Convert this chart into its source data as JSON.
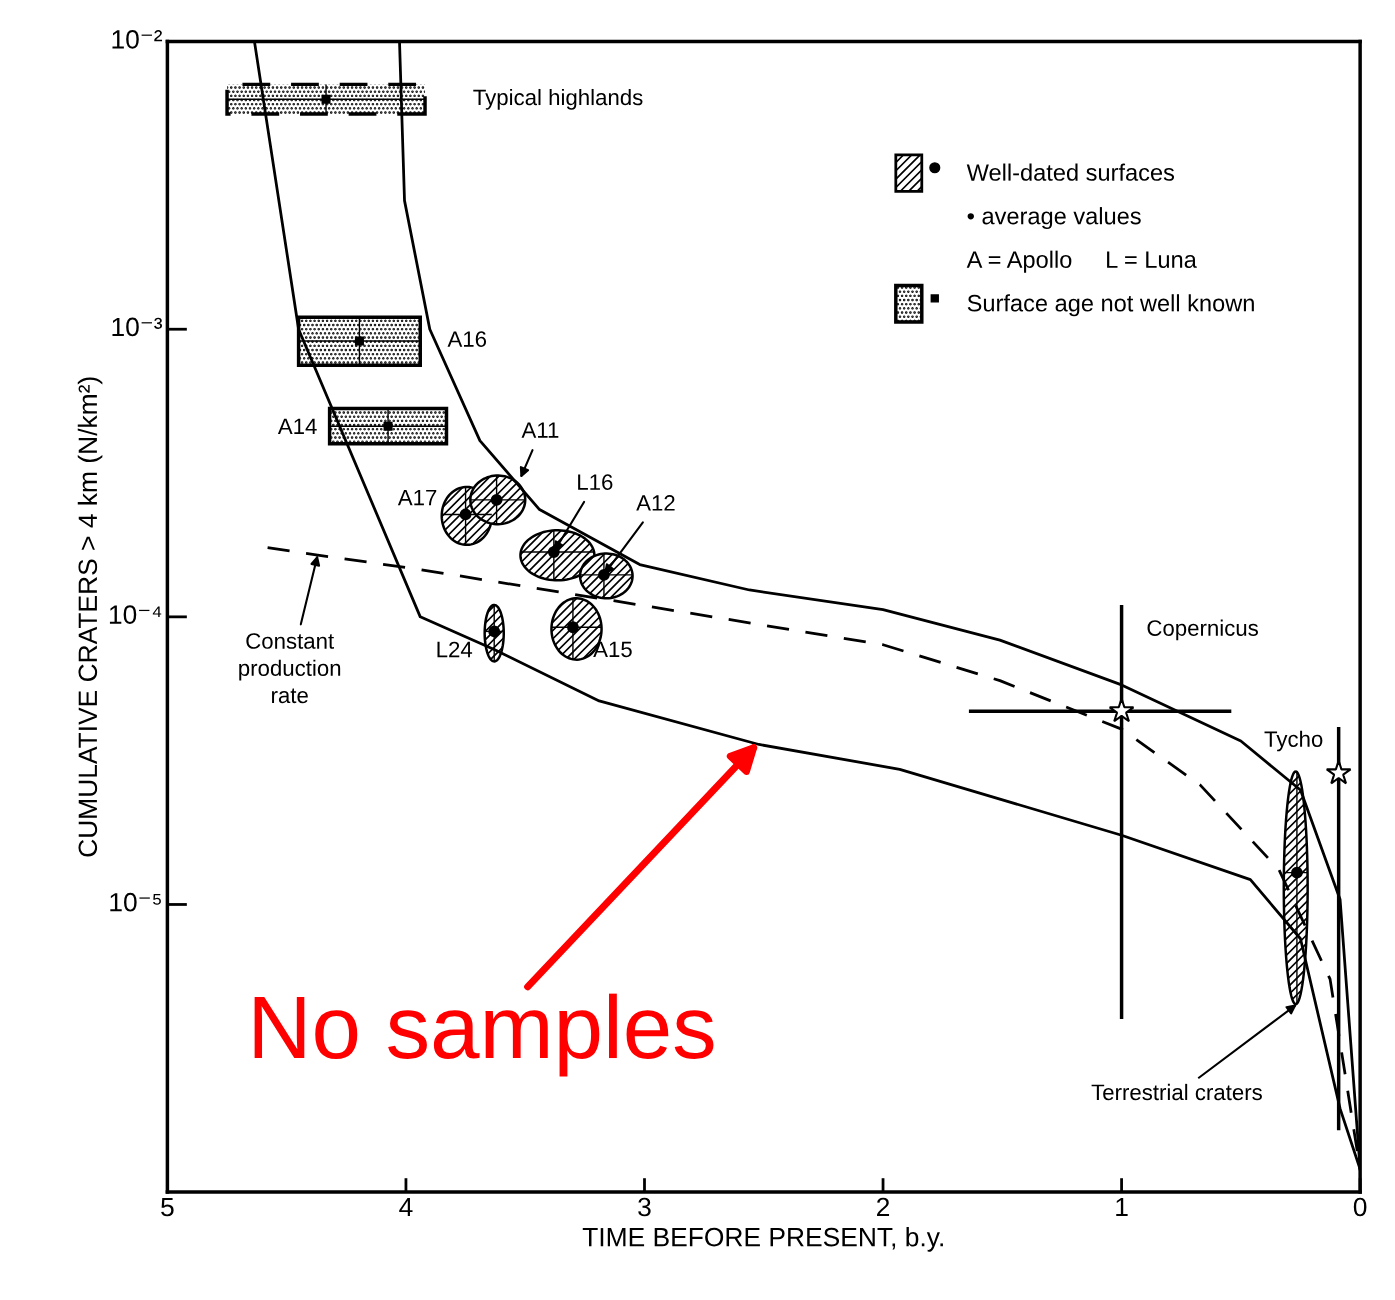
{
  "chart_data": {
    "type": "scatter",
    "xlabel": "TIME BEFORE PRESENT, b.y.",
    "ylabel": "CUMULATIVE CRATERS > 4 km (N/km²)",
    "log": "y",
    "xlim": [
      5,
      0
    ],
    "xticks": [
      5,
      4,
      3,
      2,
      1,
      0
    ],
    "ylim": [
      1e-06,
      0.01
    ],
    "yticks": [
      {
        "value": 0.01,
        "label": "10⁻²"
      },
      {
        "value": 0.001,
        "label": "10⁻³"
      },
      {
        "value": 0.0001,
        "label": "10⁻⁴"
      },
      {
        "value": 1e-05,
        "label": "10⁻⁵"
      }
    ],
    "legend": "top right",
    "series": [
      {
        "type": "line",
        "color": "#000000",
        "line_style": "solid",
        "x": [
          4.635,
          4.45,
          3.94,
          3.63,
          3.19,
          2.52,
          1.93,
          1.0,
          0.46,
          0.25,
          0.084,
          0
        ],
        "values": [
          0.01,
          0.001,
          0.0001,
          7.7e-05,
          5.1e-05,
          3.6e-05,
          2.95e-05,
          1.74e-05,
          1.22e-05,
          7.6e-06,
          1.95e-06,
          1.2e-06
        ]
      },
      {
        "type": "line",
        "color": "#000000",
        "line_style": "solid",
        "x": [
          4.027,
          4.006,
          3.9,
          3.69,
          3.44,
          3.02,
          2.56,
          2.0,
          1.51,
          1.0,
          0.5,
          0.25,
          0.084,
          0
        ],
        "values": [
          0.01,
          0.0028,
          0.001,
          0.00041,
          0.000236,
          0.000152,
          0.000124,
          0.000106,
          8.3e-05,
          5.8e-05,
          3.7e-05,
          2.5e-05,
          1.04e-05,
          1.2e-06
        ]
      },
      {
        "type": "line",
        "color": "#000000",
        "line_style": "dashed",
        "x": [
          4.58,
          4.37,
          3.94,
          3.02,
          2.0,
          1.51,
          1.0,
          0.67,
          0.34,
          0.126,
          0
        ],
        "values": [
          0.000174,
          0.000164,
          0.000146,
          0.00011,
          8e-05,
          6e-05,
          4.07e-05,
          2.6e-05,
          1.32e-05,
          5.5e-06,
          1.2e-06
        ]
      },
      {
        "name": "Well-dated surfaces",
        "marker": "circle",
        "color": "#000000",
        "x": [
          3.75,
          3.62,
          3.38,
          3.17,
          3.3,
          3.63,
          0.265
        ],
        "values": [
          0.000227,
          0.000255,
          0.000168,
          0.00014,
          9.2e-05,
          8.9e-05,
          1.29e-05
        ],
        "xerrors": [
          [
            3.64,
            3.85
          ],
          [
            3.5,
            3.73
          ],
          [
            3.21,
            3.52
          ],
          [
            3.05,
            3.27
          ],
          [
            3.18,
            3.39
          ],
          [
            3.59,
            3.67
          ],
          [
            0.22,
            0.32
          ]
        ],
        "errors": [
          [
            0.000178,
            0.000283
          ],
          [
            0.00021,
            0.00031
          ],
          [
            0.000134,
            0.0002
          ],
          [
            0.000116,
            0.000166
          ],
          [
            7.1e-05,
            0.000116
          ],
          [
            7e-05,
            0.00011
          ],
          [
            4.5e-06,
            2.9e-05
          ]
        ]
      },
      {
        "name": "Surface age not well known",
        "marker": "square",
        "color": "#000000",
        "line_style": "solid",
        "x": [
          4.195,
          4.075
        ],
        "values": [
          0.00091,
          0.00046
        ],
        "xerrors": [
          [
            3.94,
            4.45
          ],
          [
            3.83,
            4.32
          ]
        ],
        "errors": [
          [
            0.00075,
            0.0011
          ],
          [
            0.0004,
            0.00053
          ]
        ]
      },
      {
        "marker": "square",
        "color": "#000000",
        "line_style": "dashed",
        "x": [
          4.335
        ],
        "values": [
          0.0063
        ],
        "xerrors": [
          [
            3.92,
            4.75
          ]
        ],
        "errors": [
          [
            0.0056,
            0.0071
          ]
        ]
      },
      {
        "marker": "star",
        "color": "#000000",
        "x": [
          1.0,
          0.09
        ],
        "values": [
          4.7e-05,
          2.86e-05
        ],
        "xerrors": [
          [
            0.54,
            1.64
          ],
          null
        ],
        "errors": [
          [
            4e-06,
            0.00011
          ],
          [
            1.64e-06,
            4.14e-05
          ]
        ]
      }
    ],
    "annotations": [
      {
        "text": "Typical highlands",
        "x": 3.92,
        "y": 0.0063
      },
      {
        "text": "A16",
        "x": 3.94,
        "y": 0.00091
      },
      {
        "text": "A14",
        "x": 4.32,
        "y": 0.00046
      },
      {
        "text": "A11",
        "x": 3.52,
        "y": 0.000304
      },
      {
        "text": "A17",
        "x": 3.75,
        "y": 0.000227
      },
      {
        "text": "L16",
        "x": 3.38,
        "y": 0.000168
      },
      {
        "text": "A12",
        "x": 3.17,
        "y": 0.00014
      },
      {
        "text": "A15",
        "x": 3.3,
        "y": 9.2e-05
      },
      {
        "text": "L24",
        "x": 3.63,
        "y": 8.9e-05
      },
      {
        "text": "Copernicus",
        "x": 1.0,
        "y": 0.00011
      },
      {
        "text": "Tycho",
        "x": 0.09,
        "y": 4.14e-05
      },
      {
        "text": "Terrestrial craters",
        "x": 0.265,
        "y": 4.5e-06
      },
      {
        "text": "Constant\nproduction\nrate",
        "x": 4.37,
        "y": 0.000164
      },
      {
        "text": "No samples",
        "x": 2.52,
        "y": 3.67e-05
      },
      "• average values",
      "A = Apollo     L = Luna"
    ]
  }
}
